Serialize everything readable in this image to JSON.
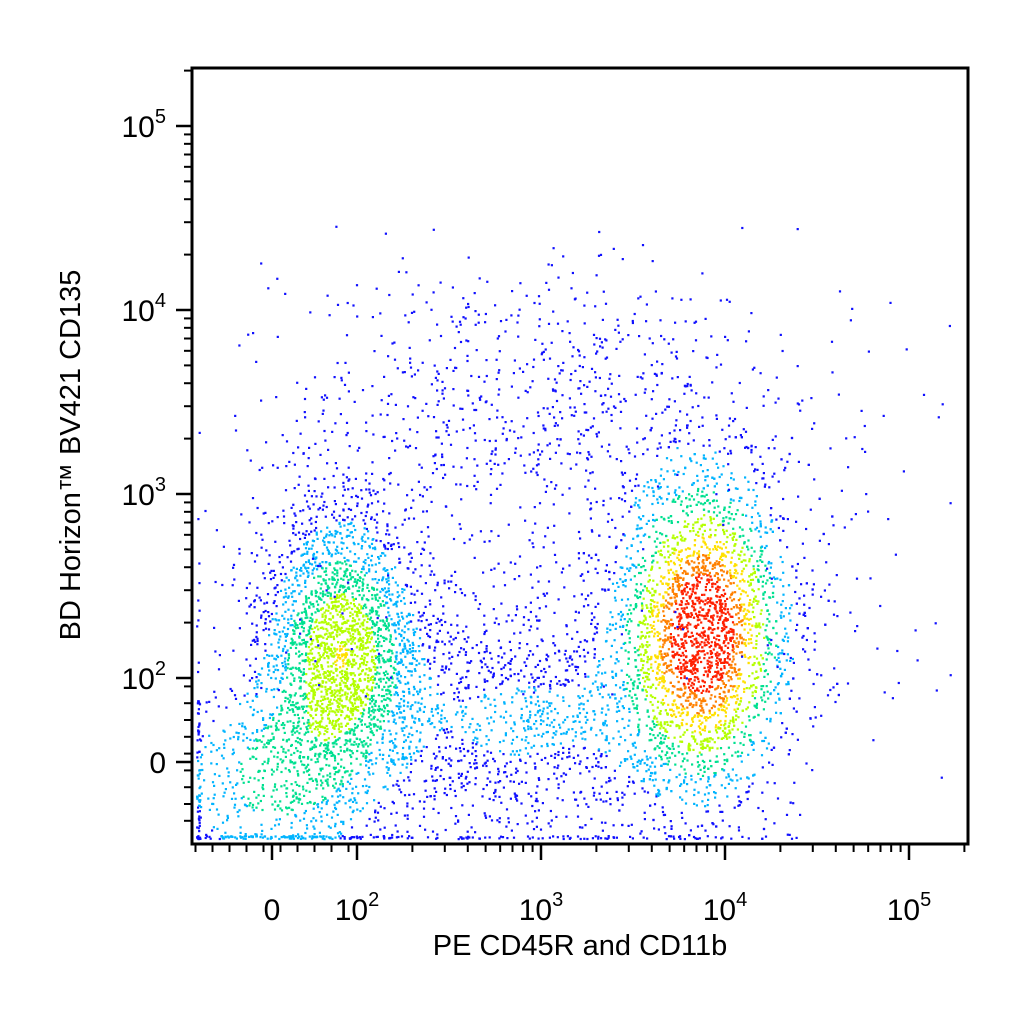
{
  "chart_data": {
    "type": "scatter",
    "subtype": "flow-cytometry-density-dot-plot",
    "xlabel": "PE CD45R and CD11b",
    "ylabel": "BD Horizon™ BV421 CD135",
    "x_scale": "biexponential",
    "y_scale": "biexponential",
    "xlim": [
      -150,
      250000
    ],
    "ylim": [
      -80,
      250000
    ],
    "x_ticks": [
      {
        "base": "0",
        "exp": "",
        "value": 0
      },
      {
        "base": "10",
        "exp": "2",
        "value": 100
      },
      {
        "base": "10",
        "exp": "3",
        "value": 1000
      },
      {
        "base": "10",
        "exp": "4",
        "value": 10000
      },
      {
        "base": "10",
        "exp": "5",
        "value": 100000
      }
    ],
    "y_ticks": [
      {
        "base": "0",
        "exp": "",
        "value": 0
      },
      {
        "base": "10",
        "exp": "2",
        "value": 100
      },
      {
        "base": "10",
        "exp": "3",
        "value": 1000
      },
      {
        "base": "10",
        "exp": "4",
        "value": 10000
      },
      {
        "base": "10",
        "exp": "5",
        "value": 100000
      }
    ],
    "populations": [
      {
        "center_x": 80,
        "center_y": 150,
        "density": "medium",
        "note": "CD45R/CD11b negative, CD135 low"
      },
      {
        "center_x": 7500,
        "center_y": 180,
        "density": "high",
        "note": "CD45R/CD11b positive, CD135 low"
      },
      {
        "center_x": 1000,
        "center_y": 3000,
        "density": "sparse",
        "note": "CD135 positive"
      }
    ],
    "color_scale": [
      "#1010ff",
      "#00b4ff",
      "#00e090",
      "#b4ff00",
      "#ffe000",
      "#ff8000",
      "#ff2000"
    ],
    "grid": false,
    "legend": "none"
  }
}
